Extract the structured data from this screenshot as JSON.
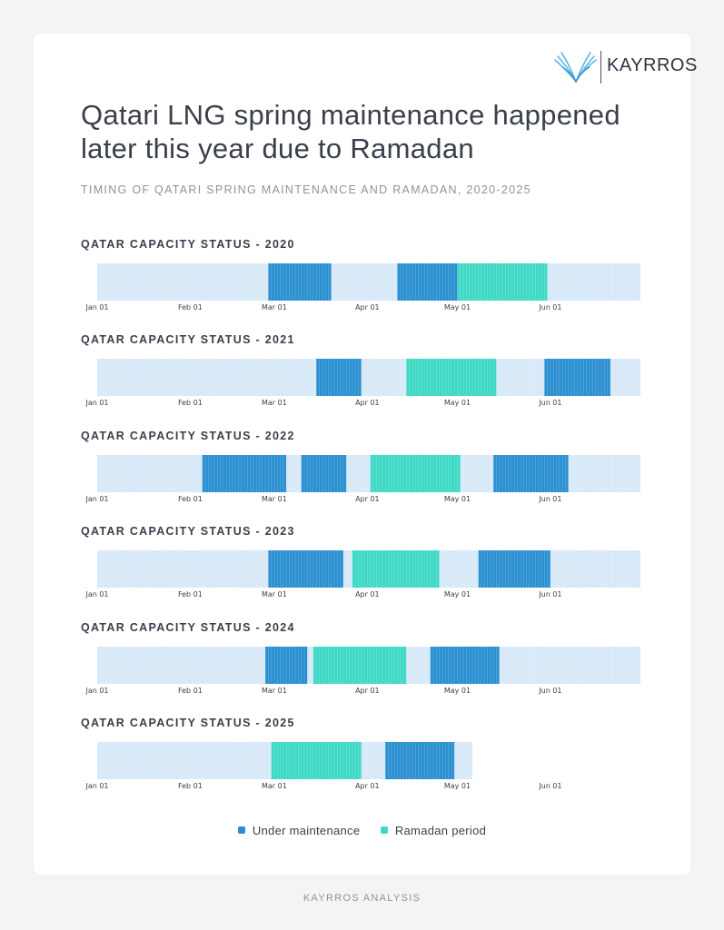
{
  "brand": {
    "name": "KAYRROS",
    "logo_icon": "kayrros-wings-icon"
  },
  "title": "Qatari LNG spring maintenance happened later this year due to Ramadan",
  "subtitle": "TIMING OF QATARI SPRING MAINTENANCE AND RAMADAN, 2020-2025",
  "legend": {
    "maintenance": "Under maintenance",
    "ramadan": "Ramadan period"
  },
  "footer": "KAYRROS ANALYSIS",
  "colors": {
    "normal": "#d7e9f8",
    "maintenance": "#2a8fd0",
    "ramadan": "#3dd9c5",
    "text": "#3a3f4b"
  },
  "chart_data": {
    "type": "timeline",
    "x_ticks": [
      "Jan 01",
      "Feb 01",
      "Mar 01",
      "Apr 01",
      "May 01",
      "Jun 01"
    ],
    "x_range_days": [
      0,
      181
    ],
    "panels": [
      {
        "title": "QATAR CAPACITY STATUS - 2020",
        "data_end_day": 181,
        "segments": [
          {
            "type": "maintenance",
            "start_day": 57,
            "end_day": 78
          },
          {
            "type": "maintenance",
            "start_day": 100,
            "end_day": 120
          },
          {
            "type": "ramadan",
            "start_day": 120,
            "end_day": 150
          }
        ]
      },
      {
        "title": "QATAR CAPACITY STATUS - 2021",
        "data_end_day": 181,
        "segments": [
          {
            "type": "maintenance",
            "start_day": 73,
            "end_day": 88
          },
          {
            "type": "ramadan",
            "start_day": 103,
            "end_day": 133
          },
          {
            "type": "maintenance",
            "start_day": 149,
            "end_day": 171
          }
        ]
      },
      {
        "title": "QATAR CAPACITY STATUS - 2022",
        "data_end_day": 181,
        "segments": [
          {
            "type": "maintenance",
            "start_day": 35,
            "end_day": 63
          },
          {
            "type": "maintenance",
            "start_day": 68,
            "end_day": 83
          },
          {
            "type": "ramadan",
            "start_day": 91,
            "end_day": 121
          },
          {
            "type": "maintenance",
            "start_day": 132,
            "end_day": 157
          }
        ]
      },
      {
        "title": "QATAR CAPACITY STATUS - 2023",
        "data_end_day": 181,
        "segments": [
          {
            "type": "maintenance",
            "start_day": 57,
            "end_day": 82
          },
          {
            "type": "ramadan",
            "start_day": 85,
            "end_day": 114
          },
          {
            "type": "maintenance",
            "start_day": 127,
            "end_day": 151
          }
        ]
      },
      {
        "title": "QATAR CAPACITY STATUS - 2024",
        "data_end_day": 181,
        "segments": [
          {
            "type": "maintenance",
            "start_day": 56,
            "end_day": 70
          },
          {
            "type": "ramadan",
            "start_day": 72,
            "end_day": 103
          },
          {
            "type": "maintenance",
            "start_day": 111,
            "end_day": 134
          }
        ]
      },
      {
        "title": "QATAR CAPACITY STATUS - 2025",
        "data_end_day": 125,
        "segments": [
          {
            "type": "ramadan",
            "start_day": 58,
            "end_day": 88
          },
          {
            "type": "maintenance",
            "start_day": 96,
            "end_day": 119
          }
        ]
      }
    ]
  }
}
